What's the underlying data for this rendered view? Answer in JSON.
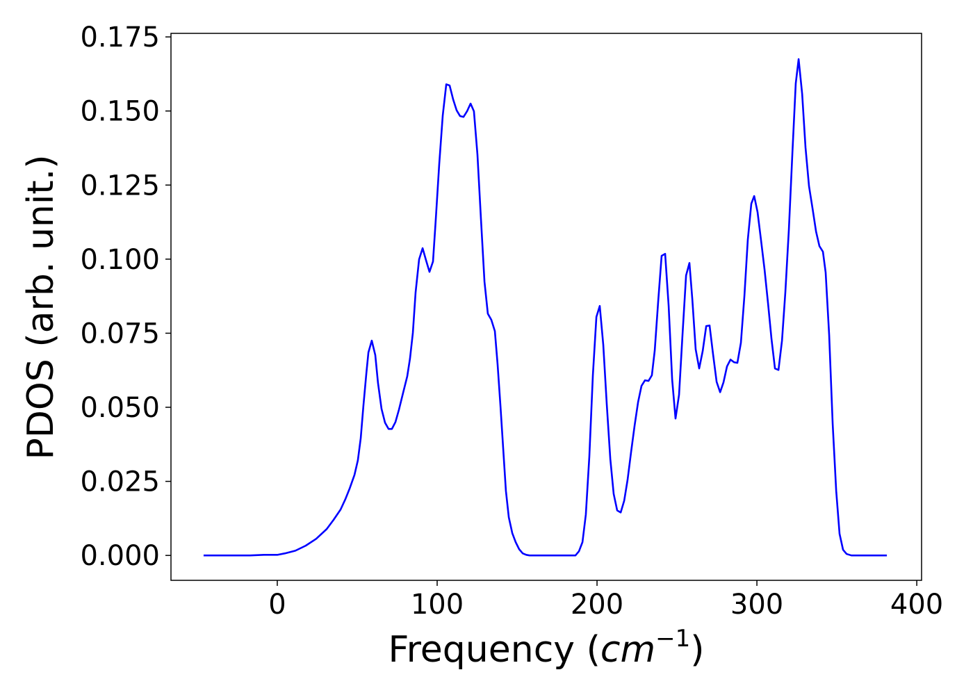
{
  "chart_data": {
    "type": "line",
    "xlabel": [
      "Frequency (",
      "cm",
      "−1",
      ")"
    ],
    "ylabel": "PDOS (arb. unit.)",
    "xlim": [
      -66.5,
      403
    ],
    "ylim": [
      -0.0084,
      0.1762
    ],
    "xticks": [
      0,
      100,
      200,
      300,
      400
    ],
    "yticks": [
      {
        "value": 0,
        "label": "0.000"
      },
      0.025,
      {
        "value": 0.05,
        "label": "0.050"
      },
      0.075,
      {
        "value": 0.1,
        "label": "0.100"
      },
      0.125,
      {
        "value": 0.15,
        "label": "0.150"
      },
      0.175
    ],
    "grid": false,
    "series": [
      {
        "color": "#0000ff",
        "x": [
          -46.1,
          -17.0,
          -8.3,
          0,
          4.8,
          11.3,
          17.8,
          24.3,
          30.9,
          35.2,
          39.6,
          42.6,
          45.2,
          48.3,
          50.4,
          52.2,
          53.9,
          55.7,
          57.0,
          59.1,
          61.3,
          63.0,
          65.2,
          67.4,
          69.6,
          71.7,
          73.9,
          76.1,
          78.7,
          81.3,
          83.0,
          84.8,
          86.5,
          88.7,
          90.9,
          93.0,
          95.2,
          97.4,
          99.1,
          101.3,
          103.5,
          105.7,
          107.8,
          110.0,
          112.2,
          114.3,
          116.5,
          118.7,
          120.9,
          123.0,
          125.2,
          127.4,
          129.6,
          131.7,
          133.9,
          136.1,
          137.8,
          139.6,
          141.3,
          143.0,
          144.8,
          147.0,
          149.1,
          151.3,
          153.5,
          155.7,
          157.8,
          170.0,
          186.5,
          188.7,
          190.9,
          193.0,
          195.2,
          197.4,
          199.6,
          201.7,
          203.9,
          206.1,
          208.3,
          210.4,
          212.6,
          214.8,
          217.0,
          219.1,
          221.3,
          223.5,
          225.7,
          227.8,
          230.0,
          232.2,
          234.3,
          236.1,
          238.3,
          240.4,
          242.6,
          244.8,
          247.0,
          249.1,
          251.3,
          253.5,
          255.7,
          257.8,
          259.6,
          261.7,
          263.9,
          266.1,
          268.3,
          270.4,
          272.6,
          274.8,
          277.0,
          279.1,
          281.3,
          283.5,
          285.7,
          287.8,
          290.0,
          292.2,
          294.3,
          296.5,
          298.3,
          300.4,
          302.6,
          304.8,
          307.0,
          309.1,
          311.3,
          313.5,
          315.7,
          317.8,
          320.0,
          322.2,
          324.3,
          326.1,
          328.3,
          330.4,
          332.6,
          334.8,
          337.0,
          339.1,
          341.3,
          343.0,
          345.2,
          347.4,
          349.6,
          351.7,
          353.9,
          356.1,
          359.1,
          381.3
        ],
        "values": [
          0,
          0,
          0.0002,
          0.0002,
          0.0007,
          0.0016,
          0.0033,
          0.0056,
          0.0089,
          0.012,
          0.0155,
          0.019,
          0.0225,
          0.0272,
          0.0321,
          0.0396,
          0.0507,
          0.0614,
          0.0685,
          0.0725,
          0.0676,
          0.0582,
          0.0495,
          0.0448,
          0.0427,
          0.0427,
          0.045,
          0.0492,
          0.0549,
          0.0605,
          0.0664,
          0.0751,
          0.0887,
          0.0999,
          0.1037,
          0.0997,
          0.0957,
          0.0992,
          0.1131,
          0.1321,
          0.1485,
          0.159,
          0.1586,
          0.1539,
          0.1502,
          0.1483,
          0.148,
          0.1499,
          0.1525,
          0.1499,
          0.1353,
          0.1135,
          0.0924,
          0.0816,
          0.0795,
          0.0757,
          0.0645,
          0.0504,
          0.0361,
          0.0218,
          0.0129,
          0.0075,
          0.0045,
          0.0021,
          0.0007,
          0.0002,
          0,
          0,
          0,
          0.0014,
          0.0045,
          0.0138,
          0.0335,
          0.0608,
          0.0805,
          0.0842,
          0.0711,
          0.0509,
          0.0326,
          0.0208,
          0.0152,
          0.0145,
          0.0185,
          0.0255,
          0.0349,
          0.0438,
          0.0518,
          0.0572,
          0.0591,
          0.0589,
          0.0608,
          0.0692,
          0.0861,
          0.1011,
          0.1018,
          0.0842,
          0.0593,
          0.0462,
          0.0542,
          0.0748,
          0.0945,
          0.0987,
          0.0865,
          0.0696,
          0.0631,
          0.069,
          0.0774,
          0.0776,
          0.0678,
          0.0586,
          0.0551,
          0.0584,
          0.0638,
          0.0661,
          0.0652,
          0.065,
          0.0718,
          0.0877,
          0.1065,
          0.1187,
          0.1213,
          0.1159,
          0.1063,
          0.0964,
          0.0849,
          0.0732,
          0.0631,
          0.0626,
          0.0725,
          0.0889,
          0.11,
          0.1358,
          0.1593,
          0.1675,
          0.1558,
          0.1377,
          0.1246,
          0.1171,
          0.1093,
          0.1044,
          0.1025,
          0.0955,
          0.0744,
          0.0444,
          0.0218,
          0.0073,
          0.0019,
          0.0005,
          0,
          0
        ]
      }
    ]
  }
}
